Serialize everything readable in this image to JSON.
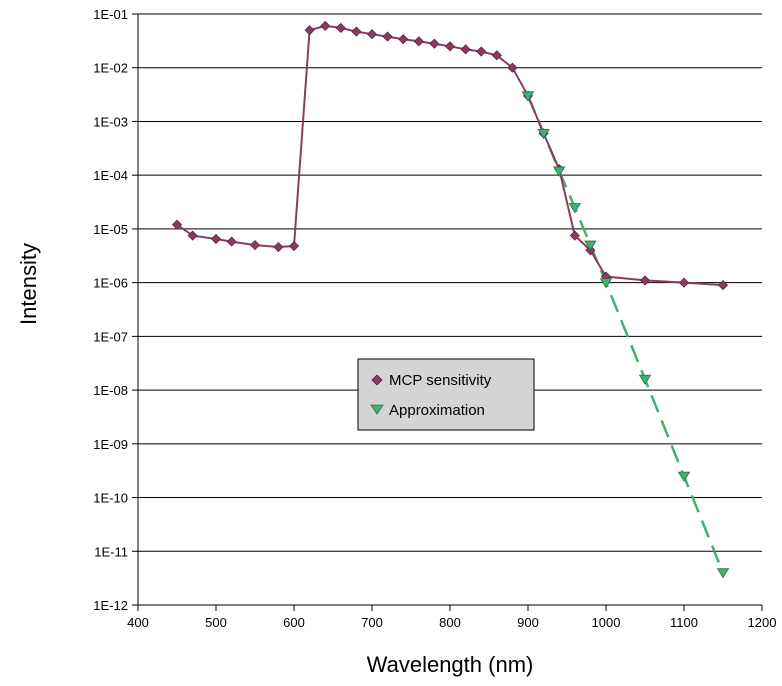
{
  "chart_data": {
    "type": "scatter",
    "title": "",
    "xlabel": "Wavelength (nm)",
    "ylabel": "Intensity",
    "xlim": [
      400,
      1200
    ],
    "ylim": [
      1e-12,
      0.1
    ],
    "y_scale": "log",
    "x_ticks": [
      400,
      500,
      600,
      700,
      800,
      900,
      1000,
      1100,
      1200
    ],
    "x_tick_labels": [
      "400",
      "500",
      "600",
      "700",
      "800",
      "900",
      "1000",
      "1100",
      "1200"
    ],
    "y_ticks": [
      1e-12,
      1e-11,
      1e-10,
      1e-09,
      1e-08,
      1e-07,
      1e-06,
      1e-05,
      0.0001,
      0.001,
      0.01,
      0.1
    ],
    "y_tick_labels": [
      "1E-12",
      "1E-11",
      "1E-10",
      "1E-09",
      "1E-08",
      "1E-07",
      "1E-06",
      "1E-05",
      "1E-04",
      "1E-03",
      "1E-02",
      "1E-01"
    ],
    "grid": "horizontal major",
    "legend_position": "center",
    "series": [
      {
        "name": "MCP sensitivity",
        "color": "#8b3a62",
        "marker": "diamond",
        "line": "solid",
        "points": [
          [
            450,
            1.2e-05
          ],
          [
            470,
            7.5e-06
          ],
          [
            500,
            6.5e-06
          ],
          [
            520,
            5.8e-06
          ],
          [
            550,
            5e-06
          ],
          [
            580,
            4.6e-06
          ],
          [
            600,
            4.8e-06
          ],
          [
            620,
            0.05
          ],
          [
            640,
            0.06
          ],
          [
            660,
            0.055
          ],
          [
            680,
            0.047
          ],
          [
            700,
            0.042
          ],
          [
            720,
            0.038
          ],
          [
            740,
            0.034
          ],
          [
            760,
            0.031
          ],
          [
            780,
            0.028
          ],
          [
            800,
            0.025
          ],
          [
            820,
            0.022
          ],
          [
            840,
            0.02
          ],
          [
            860,
            0.017
          ],
          [
            880,
            0.01
          ],
          [
            900,
            0.003
          ],
          [
            920,
            0.0006
          ],
          [
            940,
            0.00013
          ],
          [
            960,
            7.5e-06
          ],
          [
            980,
            4e-06
          ],
          [
            1000,
            1.3e-06
          ],
          [
            1050,
            1.1e-06
          ],
          [
            1100,
            1e-06
          ],
          [
            1150,
            9e-07
          ]
        ]
      },
      {
        "name": "Approximation",
        "color": "#3cb371",
        "marker": "triangle-down",
        "line": "dashed",
        "points": [
          [
            900,
            0.003
          ],
          [
            920,
            0.0006
          ],
          [
            940,
            0.00012
          ],
          [
            960,
            2.5e-05
          ],
          [
            980,
            5e-06
          ],
          [
            1000,
            1e-06
          ],
          [
            1050,
            1.6e-08
          ],
          [
            1100,
            2.5e-10
          ],
          [
            1150,
            4e-12
          ]
        ]
      }
    ]
  }
}
